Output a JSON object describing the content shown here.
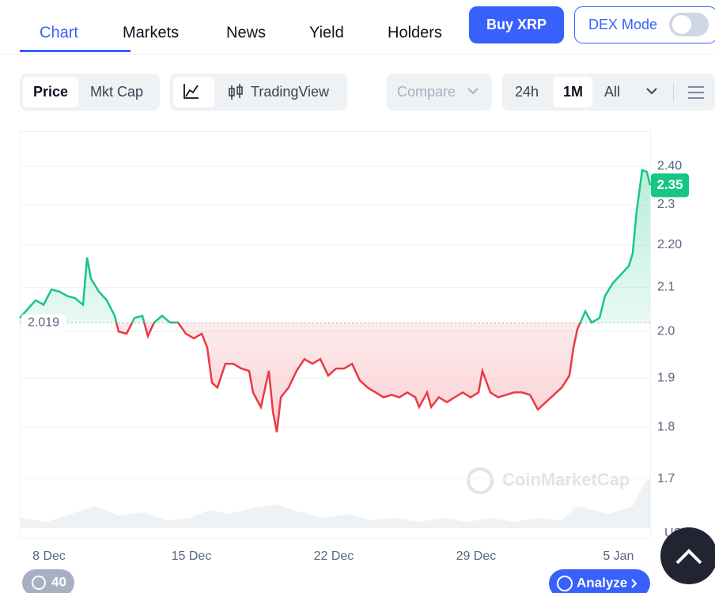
{
  "tabs": [
    "Chart",
    "Markets",
    "News",
    "Yield",
    "Holders"
  ],
  "buttons": {
    "buy": "Buy XRP",
    "dex": "DEX Mode"
  },
  "toolbar": {
    "price": "Price",
    "mkt_cap": "Mkt Cap",
    "tradingview": "TradingView",
    "compare": "Compare",
    "ranges": [
      "24h",
      "1M",
      "All"
    ]
  },
  "chart_data": {
    "type": "line",
    "x": [
      6.56,
      6.95,
      7.34,
      7.73,
      8.12,
      8.5,
      8.89,
      9.28,
      9.67,
      9.87,
      10.06,
      10.45,
      10.84,
      11.23,
      11.42,
      11.81,
      12.2,
      12.59,
      12.86,
      13.17,
      13.56,
      13.95,
      14.34,
      14.73,
      15.12,
      15.51,
      15.78,
      16.01,
      16.28,
      16.67,
      17.06,
      17.45,
      17.84,
      18.03,
      18.42,
      18.81,
      19.01,
      19.2,
      19.4,
      19.78,
      20.17,
      20.56,
      20.95,
      21.34,
      21.73,
      22.12,
      22.51,
      22.9,
      23.28,
      23.67,
      24.06,
      24.45,
      24.84,
      25.23,
      25.62,
      26.01,
      26.2,
      26.59,
      26.79,
      27.17,
      27.56,
      27.95,
      28.34,
      28.73,
      29.12,
      29.31,
      29.7,
      30.09,
      30.48,
      30.87,
      31.26,
      31.65,
      32.04,
      32.43,
      32.82,
      33.21,
      33.59,
      33.79,
      33.98,
      34.37,
      34.68,
      35.07,
      35.34,
      35.73,
      36.12,
      36.51,
      36.7,
      36.9,
      37.17,
      37.4,
      37.56
    ],
    "values": [
      2.03,
      2.05,
      2.07,
      2.06,
      2.095,
      2.09,
      2.08,
      2.075,
      2.06,
      2.17,
      2.12,
      2.09,
      2.07,
      2.035,
      2.0,
      1.995,
      2.03,
      2.035,
      1.99,
      2.02,
      2.035,
      2.02,
      2.02,
      1.995,
      1.985,
      1.995,
      1.965,
      1.89,
      1.88,
      1.93,
      1.93,
      1.92,
      1.915,
      1.87,
      1.84,
      1.915,
      1.83,
      1.79,
      1.86,
      1.88,
      1.915,
      1.94,
      1.93,
      1.94,
      1.905,
      1.92,
      1.92,
      1.93,
      1.895,
      1.88,
      1.87,
      1.86,
      1.865,
      1.86,
      1.87,
      1.86,
      1.84,
      1.87,
      1.84,
      1.86,
      1.85,
      1.86,
      1.87,
      1.86,
      1.87,
      1.915,
      1.87,
      1.86,
      1.865,
      1.87,
      1.87,
      1.865,
      1.835,
      1.85,
      1.865,
      1.88,
      1.905,
      1.965,
      2.005,
      2.045,
      2.02,
      2.03,
      2.08,
      2.11,
      2.13,
      2.15,
      2.18,
      2.285,
      2.39,
      2.385,
      2.35
    ],
    "baseline": 2.019,
    "last_price": 2.35,
    "currency": "USD",
    "up_color": "#16c784",
    "down_color": "#ea3943",
    "xlim": [
      6.56,
      37.56
    ],
    "xticks": [
      {
        "value": 8,
        "label": "8 Dec"
      },
      {
        "value": 15,
        "label": "15 Dec"
      },
      {
        "value": 22,
        "label": "22 Dec"
      },
      {
        "value": 29,
        "label": "29 Dec"
      },
      {
        "value": 36,
        "label": "5 Jan"
      }
    ],
    "ylim": [
      1.61,
      2.49
    ],
    "log_scale": true,
    "grid": true,
    "yticks": [
      1.7,
      1.8,
      1.9,
      {
        "value": 2,
        "label": "2.0"
      },
      2.1,
      {
        "value": 2.2,
        "label": "2.20"
      },
      2.3,
      {
        "value": 2.4,
        "label": "2.40"
      }
    ]
  },
  "watermark": "CoinMarketCap",
  "analyze": "Analyze",
  "badge": "40"
}
